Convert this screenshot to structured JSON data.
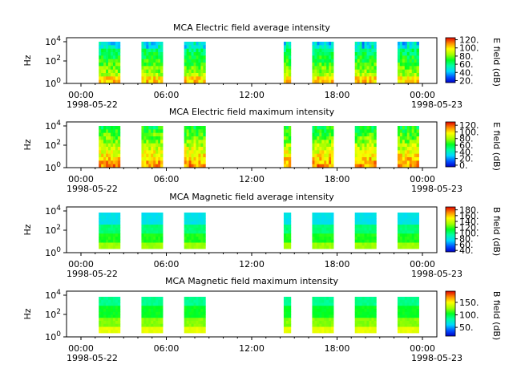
{
  "chart_data": [
    {
      "type": "heatmap",
      "title": "MCA  Electric field average intensity",
      "ylabel": "Hz",
      "yticks": [
        "10^0",
        "10^2",
        "10^4"
      ],
      "xticks": [
        "00:00",
        "06:00",
        "12:00",
        "18:00",
        "00:00"
      ],
      "date_start": "1998-05-22",
      "date_end": "1998-05-23",
      "colorbar": {
        "label": "E field (dB)",
        "ticks": [
          "20.",
          "40.",
          "60.",
          "80.",
          "100.",
          "120."
        ],
        "range": [
          15,
          125
        ]
      },
      "segments_hours": [
        [
          1.25,
          2.75
        ],
        [
          4.25,
          5.75
        ],
        [
          7.25,
          8.75
        ],
        [
          14.25,
          14.75
        ],
        [
          16.25,
          17.75
        ],
        [
          19.25,
          20.75
        ],
        [
          22.25,
          23.75
        ]
      ]
    },
    {
      "type": "heatmap",
      "title": "MCA  Electric field maximum intensity",
      "ylabel": "Hz",
      "yticks": [
        "10^0",
        "10^2",
        "10^4"
      ],
      "xticks": [
        "00:00",
        "06:00",
        "12:00",
        "18:00",
        "00:00"
      ],
      "date_start": "1998-05-22",
      "date_end": "1998-05-23",
      "colorbar": {
        "label": "E field (dB)",
        "ticks": [
          "0.",
          "20.",
          "40.",
          "60.",
          "80.",
          "100.",
          "120."
        ],
        "range": [
          -5,
          130
        ]
      },
      "segments_hours": [
        [
          1.25,
          2.75
        ],
        [
          4.25,
          5.75
        ],
        [
          7.25,
          8.75
        ],
        [
          14.25,
          14.75
        ],
        [
          16.25,
          17.75
        ],
        [
          19.25,
          20.75
        ],
        [
          22.25,
          23.75
        ]
      ]
    },
    {
      "type": "heatmap",
      "title": "MCA  Magnetic field average intensity",
      "ylabel": "Hz",
      "yticks": [
        "10^0",
        "10^2",
        "10^4"
      ],
      "xticks": [
        "00:00",
        "06:00",
        "12:00",
        "18:00",
        "00:00"
      ],
      "date_start": "1998-05-22",
      "date_end": "1998-05-23",
      "colorbar": {
        "label": "B field (dB)",
        "ticks": [
          "40.",
          "60.",
          "80.",
          "100.",
          "120.",
          "140.",
          "160.",
          "180."
        ],
        "range": [
          35,
          190
        ]
      },
      "segments_hours": [
        [
          1.25,
          2.75
        ],
        [
          4.25,
          5.75
        ],
        [
          7.25,
          8.75
        ],
        [
          14.25,
          14.75
        ],
        [
          16.25,
          17.75
        ],
        [
          19.25,
          20.75
        ],
        [
          22.25,
          23.75
        ]
      ]
    },
    {
      "type": "heatmap",
      "title": "MCA  Magnetic field maximum intensity",
      "ylabel": "Hz",
      "yticks": [
        "10^0",
        "10^2",
        "10^4"
      ],
      "xticks": [
        "00:00",
        "06:00",
        "12:00",
        "18:00",
        "00:00"
      ],
      "date_start": "1998-05-22",
      "date_end": "1998-05-23",
      "colorbar": {
        "label": "B field (dB)",
        "ticks": [
          "50.",
          "100.",
          "150."
        ],
        "range": [
          15,
          195
        ]
      },
      "segments_hours": [
        [
          1.25,
          2.75
        ],
        [
          4.25,
          5.75
        ],
        [
          7.25,
          8.75
        ],
        [
          14.25,
          14.75
        ],
        [
          16.25,
          17.75
        ],
        [
          19.25,
          20.75
        ],
        [
          22.25,
          23.75
        ]
      ]
    }
  ]
}
